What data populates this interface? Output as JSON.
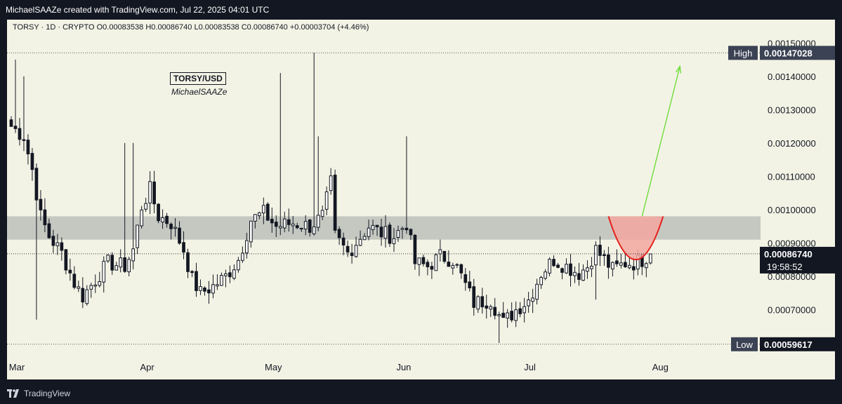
{
  "header": {
    "title": "MichaelSAAZe created with TradingView.com, Jul 22, 2025 04:01 UTC"
  },
  "footer": {
    "brand": "TradingView"
  },
  "legend": {
    "text": "TORSY · 1D · CRYPTO  O0.00083538  H0.00086740  L0.00083538  C0.00086740  +0.00003704 (+4.46%)"
  },
  "watermark": {
    "symbol": "TORSY/USD",
    "author": "MichaelSAAZe"
  },
  "badges": {
    "high_label": "High",
    "high_value": "0.00147028",
    "low_label": "Low",
    "low_value": "0.00059617",
    "last_price": "0.00086740",
    "countdown": "19:58:52"
  },
  "colors": {
    "background": "#f3f3e5",
    "candle": "#131722",
    "zone": "#c0c3bc",
    "cup_fill": "#f2a7a0",
    "cup_stroke": "#e8201b",
    "arrow": "#6fdc3c"
  },
  "chart_data": {
    "type": "candlestick",
    "symbol": "TORSY/USD",
    "interval": "1D",
    "exchange": "CRYPTO",
    "y_ticks": [
      "0.00150000",
      "0.00140000",
      "0.00130000",
      "0.00120000",
      "0.00110000",
      "0.00100000",
      "0.00090000",
      "0.00080000",
      "0.00070000"
    ],
    "x_ticks": [
      "Mar",
      "Apr",
      "May",
      "Jun",
      "Jul",
      "Aug"
    ],
    "ylim": [
      0.00056,
      0.00157
    ],
    "xlim": [
      -1,
      178
    ],
    "month_starts": [
      1,
      32,
      62,
      93,
      123,
      154
    ],
    "resistance_zone": [
      0.00091,
      0.00098
    ],
    "high": {
      "value": 0.00147028,
      "day": 72
    },
    "low": {
      "value": 0.00059617,
      "day": 117
    },
    "cup": {
      "x_start": 142,
      "x_end": 155,
      "top": 0.00098,
      "bottom": 0.00085
    },
    "arrow": {
      "from": [
        150,
        0.00098
      ],
      "to": [
        159,
        0.00143
      ]
    },
    "close_anchors": [
      [
        0,
        0.00125
      ],
      [
        3,
        0.00122
      ],
      [
        5,
        0.00112
      ],
      [
        7,
        0.00098
      ],
      [
        9,
        0.00092
      ],
      [
        12,
        0.00087
      ],
      [
        15,
        0.00078
      ],
      [
        17,
        0.00074
      ],
      [
        20,
        0.00079
      ],
      [
        23,
        0.00084
      ],
      [
        27,
        0.00083
      ],
      [
        29,
        0.00088
      ],
      [
        31,
        0.00101
      ],
      [
        33,
        0.00106
      ],
      [
        35,
        0.00098
      ],
      [
        38,
        0.00096
      ],
      [
        41,
        0.00088
      ],
      [
        43,
        0.00079
      ],
      [
        45,
        0.00075
      ],
      [
        48,
        0.00077
      ],
      [
        51,
        0.0008
      ],
      [
        54,
        0.00085
      ],
      [
        57,
        0.00097
      ],
      [
        60,
        0.00099
      ],
      [
        63,
        0.00095
      ],
      [
        67,
        0.00096
      ],
      [
        71,
        0.00095
      ],
      [
        74,
        0.00098
      ],
      [
        76,
        0.00108
      ],
      [
        77,
        0.00092
      ],
      [
        80,
        0.00087
      ],
      [
        85,
        0.00095
      ],
      [
        88,
        0.00093
      ],
      [
        91,
        0.00092
      ],
      [
        94,
        0.00096
      ],
      [
        96,
        0.00084
      ],
      [
        99,
        0.00083
      ],
      [
        102,
        0.00086
      ],
      [
        105,
        0.00085
      ],
      [
        107,
        0.0008
      ],
      [
        110,
        0.00072
      ],
      [
        114,
        0.00073
      ],
      [
        117,
        0.00066
      ],
      [
        120,
        0.0007
      ],
      [
        123,
        0.00073
      ],
      [
        126,
        0.00081
      ],
      [
        129,
        0.00085
      ],
      [
        132,
        0.00083
      ],
      [
        135,
        0.00081
      ],
      [
        137,
        0.00083
      ],
      [
        139,
        0.00088
      ],
      [
        141,
        0.00085
      ],
      [
        143,
        0.00082
      ],
      [
        146,
        0.00084
      ],
      [
        148,
        0.00084
      ],
      [
        150,
        0.00085
      ],
      [
        152,
        0.00087
      ]
    ],
    "spikes": [
      [
        1,
        0.00145
      ],
      [
        3,
        0.0014
      ],
      [
        6,
        0.00067
      ],
      [
        27,
        0.0012
      ],
      [
        29,
        0.0012
      ],
      [
        64,
        0.00141
      ],
      [
        72,
        0.00147028
      ],
      [
        73,
        0.00122
      ],
      [
        94,
        0.00122
      ],
      [
        116,
        0.0006
      ],
      [
        139,
        0.00073
      ]
    ]
  }
}
